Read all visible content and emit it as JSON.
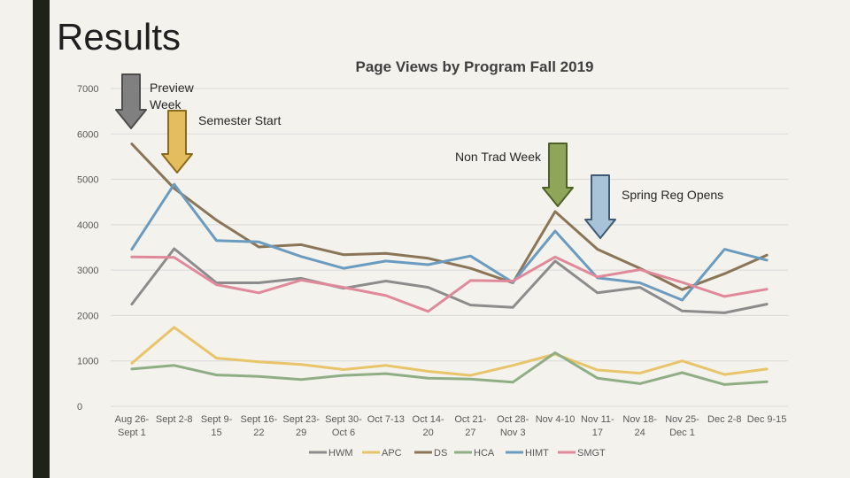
{
  "slide": {
    "title": "Results"
  },
  "chart_data": {
    "type": "line",
    "title": "Page Views by Program Fall 2019",
    "xlabel": "",
    "ylabel": "",
    "ylim": [
      0,
      7000
    ],
    "yticks": [
      0,
      1000,
      2000,
      3000,
      4000,
      5000,
      6000,
      7000
    ],
    "grid": true,
    "legend": "bottom",
    "categories": [
      [
        "Aug 26-",
        "Sept 1"
      ],
      [
        "Sept 2-8"
      ],
      [
        "Sept 9-",
        "15"
      ],
      [
        "Sept 16-",
        "22"
      ],
      [
        "Sept 23-",
        "29"
      ],
      [
        "Sept 30-",
        "Oct 6"
      ],
      [
        "Oct 7-13"
      ],
      [
        "Oct 14-",
        "20"
      ],
      [
        "Oct 21-",
        "27"
      ],
      [
        "Oct 28-",
        "Nov 3"
      ],
      [
        "Nov 4-10"
      ],
      [
        "Nov 11-",
        "17"
      ],
      [
        "Nov 18-",
        "24"
      ],
      [
        "Nov 25-",
        "Dec 1"
      ],
      [
        "Dec 2-8"
      ],
      [
        "Dec 9-15"
      ]
    ],
    "series": [
      {
        "name": "HWM",
        "color": "#8c8c8c",
        "values": [
          2250,
          3470,
          2720,
          2720,
          2820,
          2600,
          2760,
          2620,
          2230,
          2180,
          3200,
          2500,
          2620,
          2100,
          2060,
          2250
        ]
      },
      {
        "name": "APC",
        "color": "#e8c46a",
        "values": [
          950,
          1740,
          1060,
          980,
          920,
          810,
          900,
          770,
          680,
          900,
          1150,
          800,
          730,
          1000,
          700,
          820
        ]
      },
      {
        "name": "DS",
        "color": "#8b7558",
        "values": [
          5780,
          4800,
          4100,
          3510,
          3560,
          3340,
          3370,
          3260,
          3040,
          2720,
          4290,
          3460,
          3040,
          2570,
          2920,
          3330
        ]
      },
      {
        "name": "HCA",
        "color": "#8fae86",
        "values": [
          820,
          900,
          690,
          660,
          590,
          680,
          720,
          620,
          600,
          530,
          1180,
          620,
          500,
          740,
          480,
          540
        ]
      },
      {
        "name": "HIMT",
        "color": "#6b9cc0",
        "values": [
          3460,
          4890,
          3650,
          3620,
          3300,
          3040,
          3200,
          3120,
          3310,
          2730,
          3860,
          2830,
          2720,
          2340,
          3460,
          3220
        ]
      },
      {
        "name": "SMGT",
        "color": "#e0899a",
        "values": [
          3290,
          3280,
          2680,
          2500,
          2780,
          2620,
          2440,
          2090,
          2770,
          2760,
          3290,
          2850,
          3010,
          2730,
          2420,
          2580
        ]
      }
    ],
    "annotations": [
      {
        "label": "Preview Week",
        "lines": [
          "Preview",
          "Week"
        ],
        "arrow_color": "#808080",
        "arrow_stroke": "#4d4d4d"
      },
      {
        "label": "Semester Start",
        "lines": [
          "Semester Start"
        ],
        "arrow_color": "#e3bd5e",
        "arrow_stroke": "#8a6a1c"
      },
      {
        "label": "Non Trad Week",
        "lines": [
          "Non Trad Week"
        ],
        "arrow_color": "#8fa55a",
        "arrow_stroke": "#4d6028"
      },
      {
        "label": "Spring Reg Opens",
        "lines": [
          "Spring Reg Opens"
        ],
        "arrow_color": "#a8c3d8",
        "arrow_stroke": "#3d5a72"
      }
    ]
  }
}
